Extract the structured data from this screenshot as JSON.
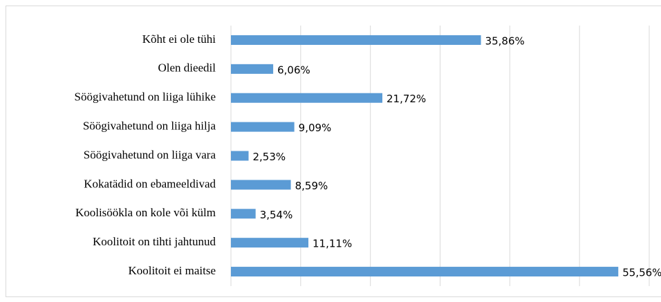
{
  "chart_data": {
    "type": "bar",
    "orientation": "horizontal",
    "categories": [
      "Kõht ei ole tühi",
      "Olen dieedil",
      "Söögivahetund on liiga lühike",
      "Söögivahetund on liiga hilja",
      "Söögivahetund on liiga vara",
      "Kokatädid on ebameeldivad",
      "Koolisöökla on kole või külm",
      "Koolitoit on tihti jahtunud",
      "Koolitoit ei maitse"
    ],
    "values": [
      35.86,
      6.06,
      21.72,
      9.09,
      2.53,
      8.59,
      3.54,
      11.11,
      55.56
    ],
    "value_labels": [
      "35,86%",
      "6,06%",
      "21,72%",
      "9,09%",
      "2,53%",
      "8,59%",
      "3,54%",
      "11,11%",
      "55,56%"
    ],
    "color": "#5b9bd5",
    "xlim": [
      0,
      60
    ],
    "xticks": [
      0,
      10,
      20,
      30,
      40,
      50,
      60
    ],
    "grid": true
  }
}
